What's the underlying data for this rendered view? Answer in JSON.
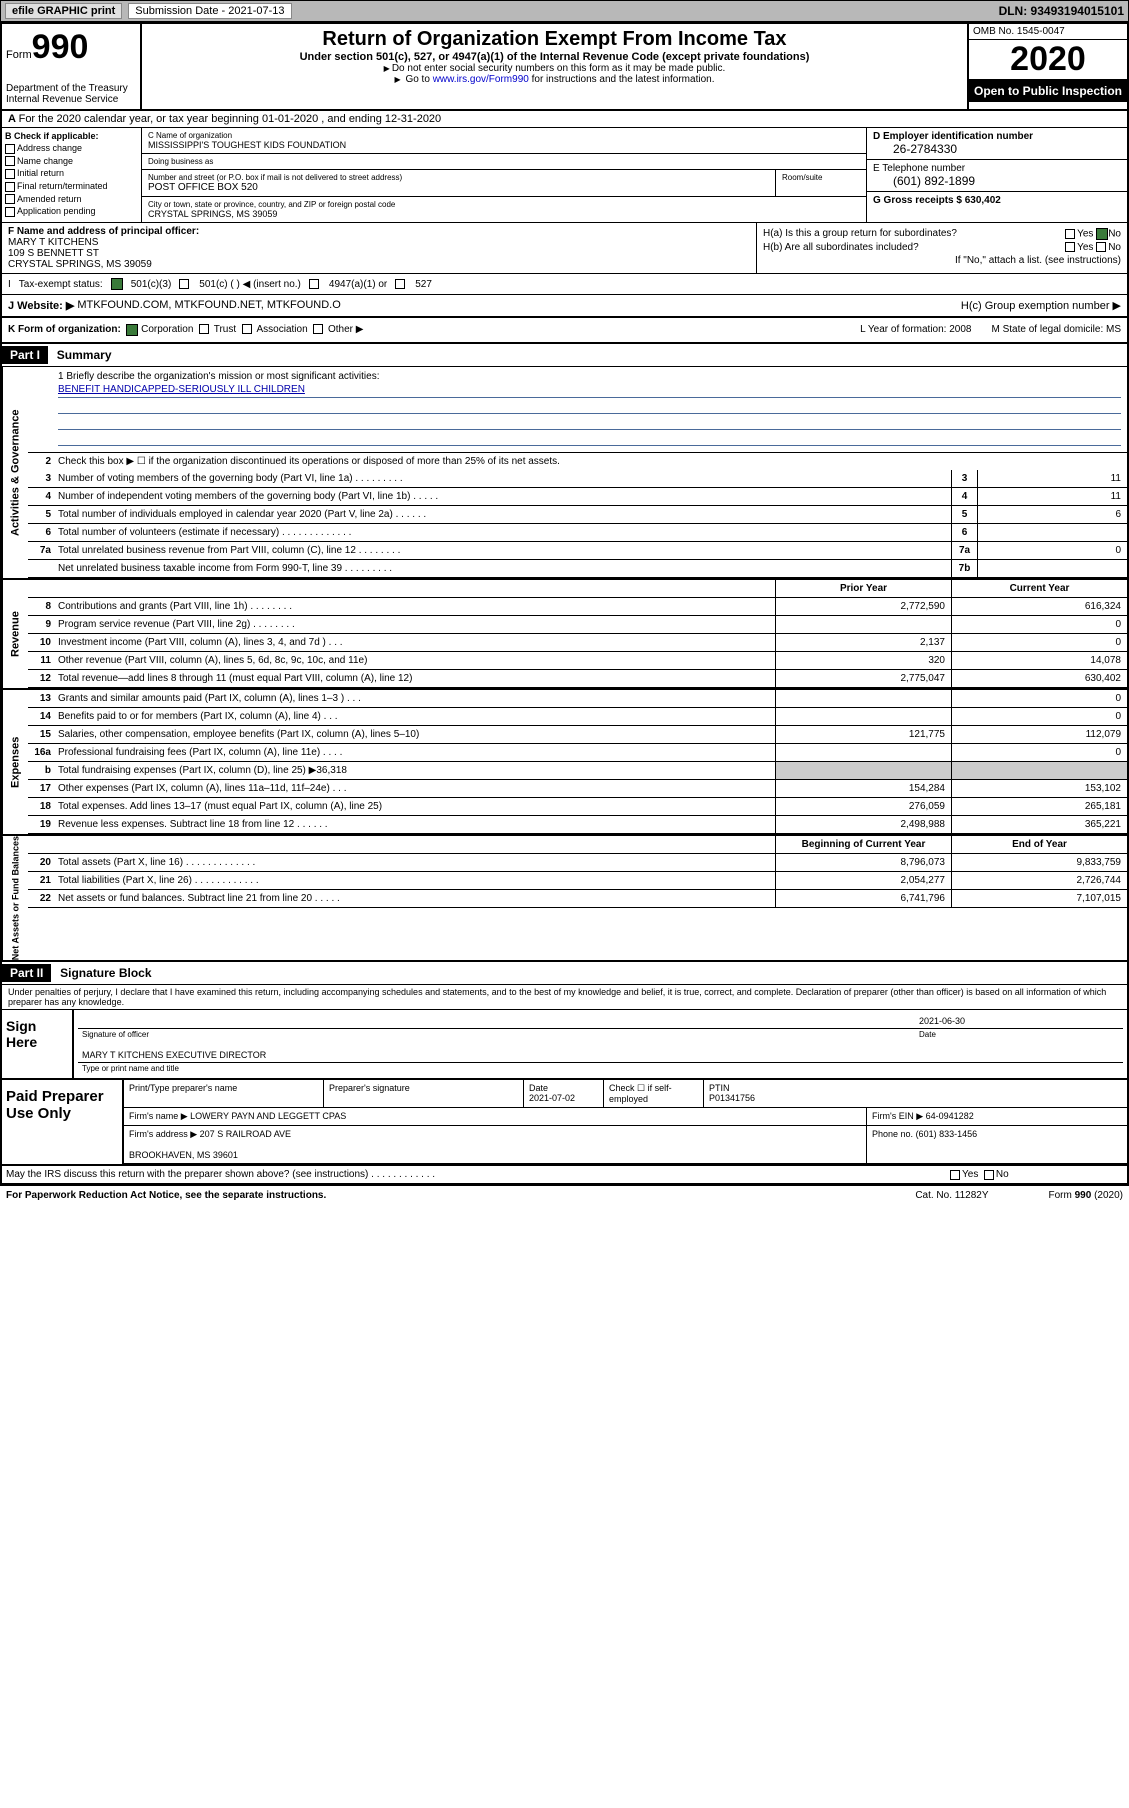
{
  "topbar": {
    "efile": "efile GRAPHIC print",
    "submission_label": "Submission Date - 2021-07-13",
    "dln": "DLN: 93493194015101"
  },
  "header": {
    "form_label": "Form",
    "form_number": "990",
    "title": "Return of Organization Exempt From Income Tax",
    "subtitle": "Under section 501(c), 527, or 4947(a)(1) of the Internal Revenue Code (except private foundations)",
    "note1": "Do not enter social security numbers on this form as it may be made public.",
    "note2_pre": "Go to ",
    "note2_link": "www.irs.gov/Form990",
    "note2_post": " for instructions and the latest information.",
    "dept": "Department of the Treasury\nInternal Revenue Service",
    "omb": "OMB No. 1545-0047",
    "year": "2020",
    "open": "Open to Public Inspection"
  },
  "row_a": "For the 2020 calendar year, or tax year beginning 01-01-2020    , and ending 12-31-2020",
  "col_b": {
    "label": "B Check if applicable:",
    "items": [
      "Address change",
      "Name change",
      "Initial return",
      "Final return/terminated",
      "Amended return",
      "Application pending"
    ]
  },
  "col_c": {
    "name_label": "C Name of organization",
    "name": "MISSISSIPPI'S TOUGHEST KIDS FOUNDATION",
    "dba_label": "Doing business as",
    "dba": "",
    "street_label": "Number and street (or P.O. box if mail is not delivered to street address)",
    "street": "POST OFFICE BOX 520",
    "room_label": "Room/suite",
    "city_label": "City or town, state or province, country, and ZIP or foreign postal code",
    "city": "CRYSTAL SPRINGS, MS  39059"
  },
  "col_d": {
    "ein_label": "D Employer identification number",
    "ein": "26-2784330",
    "phone_label": "E Telephone number",
    "phone": "(601) 892-1899",
    "gross_label": "G Gross receipts $ 630,402"
  },
  "col_f": {
    "label": "F  Name and address of principal officer:",
    "name": "MARY T KITCHENS",
    "street": "109 S BENNETT ST",
    "city": "CRYSTAL SPRINGS, MS  39059"
  },
  "col_h": {
    "ha": "H(a)  Is this a group return for subordinates?",
    "hb": "H(b)  Are all subordinates included?",
    "hb_note": "If \"No,\" attach a list. (see instructions)",
    "hc": "H(c)  Group exemption number ▶",
    "yes": "Yes",
    "no": "No"
  },
  "tax_status": {
    "label": "Tax-exempt status:",
    "opt1": "501(c)(3)",
    "opt2": "501(c) (  ) ◀ (insert no.)",
    "opt3": "4947(a)(1) or",
    "opt4": "527"
  },
  "website": {
    "label": "J   Website: ▶",
    "value": "MTKFOUND.COM, MTKFOUND.NET, MTKFOUND.O"
  },
  "k_row": {
    "label": "K Form of organization:",
    "corp": "Corporation",
    "trust": "Trust",
    "assoc": "Association",
    "other": "Other ▶",
    "l_label": "L Year of formation: 2008",
    "m_label": "M State of legal domicile: MS"
  },
  "part1": {
    "hdr": "Part I",
    "title": "Summary",
    "mission_label": "1   Briefly describe the organization's mission or most significant activities:",
    "mission": "BENEFIT HANDICAPPED-SERIOUSLY ILL CHILDREN",
    "line2": "Check this box ▶ ☐  if the organization discontinued its operations or disposed of more than 25% of its net assets.",
    "side_gov": "Activities & Governance",
    "side_rev": "Revenue",
    "side_exp": "Expenses",
    "side_net": "Net Assets or Fund Balances"
  },
  "gov_lines": [
    {
      "n": "3",
      "t": "Number of voting members of the governing body (Part VI, line 1a)   .   .   .   .   .   .   .   .   .",
      "b": "3",
      "v": "11"
    },
    {
      "n": "4",
      "t": "Number of independent voting members of the governing body (Part VI, line 1b)   .   .   .   .   .",
      "b": "4",
      "v": "11"
    },
    {
      "n": "5",
      "t": "Total number of individuals employed in calendar year 2020 (Part V, line 2a)   .   .   .   .   .   .",
      "b": "5",
      "v": "6"
    },
    {
      "n": "6",
      "t": "Total number of volunteers (estimate if necessary)   .   .   .   .   .   .   .   .   .   .   .   .   .",
      "b": "6",
      "v": ""
    },
    {
      "n": "7a",
      "t": "Total unrelated business revenue from Part VIII, column (C), line 12   .   .   .   .   .   .   .   .",
      "b": "7a",
      "v": "0"
    },
    {
      "n": "",
      "t": "Net unrelated business taxable income from Form 990-T, line 39   .   .   .   .   .   .   .   .   .",
      "b": "7b",
      "v": ""
    }
  ],
  "col_hdrs": {
    "prior": "Prior Year",
    "current": "Current Year"
  },
  "rev_lines": [
    {
      "n": "8",
      "t": "Contributions and grants (Part VIII, line 1h)   .   .   .   .   .   .   .   .",
      "p": "2,772,590",
      "c": "616,324"
    },
    {
      "n": "9",
      "t": "Program service revenue (Part VIII, line 2g)   .   .   .   .   .   .   .   .",
      "p": "",
      "c": "0"
    },
    {
      "n": "10",
      "t": "Investment income (Part VIII, column (A), lines 3, 4, and 7d )   .   .   .",
      "p": "2,137",
      "c": "0"
    },
    {
      "n": "11",
      "t": "Other revenue (Part VIII, column (A), lines 5, 6d, 8c, 9c, 10c, and 11e)",
      "p": "320",
      "c": "14,078"
    },
    {
      "n": "12",
      "t": "Total revenue—add lines 8 through 11 (must equal Part VIII, column (A), line 12)",
      "p": "2,775,047",
      "c": "630,402"
    }
  ],
  "exp_lines": [
    {
      "n": "13",
      "t": "Grants and similar amounts paid (Part IX, column (A), lines 1–3 )   .   .   .",
      "p": "",
      "c": "0"
    },
    {
      "n": "14",
      "t": "Benefits paid to or for members (Part IX, column (A), line 4)   .   .   .",
      "p": "",
      "c": "0"
    },
    {
      "n": "15",
      "t": "Salaries, other compensation, employee benefits (Part IX, column (A), lines 5–10)",
      "p": "121,775",
      "c": "112,079"
    },
    {
      "n": "16a",
      "t": "Professional fundraising fees (Part IX, column (A), line 11e)   .   .   .   .",
      "p": "",
      "c": "0"
    },
    {
      "n": "b",
      "t": "Total fundraising expenses (Part IX, column (D), line 25) ▶36,318",
      "p": "",
      "c": ""
    },
    {
      "n": "17",
      "t": "Other expenses (Part IX, column (A), lines 11a–11d, 11f–24e)   .   .   .",
      "p": "154,284",
      "c": "153,102"
    },
    {
      "n": "18",
      "t": "Total expenses. Add lines 13–17 (must equal Part IX, column (A), line 25)",
      "p": "276,059",
      "c": "265,181"
    },
    {
      "n": "19",
      "t": "Revenue less expenses. Subtract line 18 from line 12   .   .   .   .   .   .",
      "p": "2,498,988",
      "c": "365,221"
    }
  ],
  "net_hdrs": {
    "begin": "Beginning of Current Year",
    "end": "End of Year"
  },
  "net_lines": [
    {
      "n": "20",
      "t": "Total assets (Part X, line 16)   .   .   .   .   .   .   .   .   .   .   .   .   .",
      "p": "8,796,073",
      "c": "9,833,759"
    },
    {
      "n": "21",
      "t": "Total liabilities (Part X, line 26)   .   .   .   .   .   .   .   .   .   .   .   .",
      "p": "2,054,277",
      "c": "2,726,744"
    },
    {
      "n": "22",
      "t": "Net assets or fund balances. Subtract line 21 from line 20   .   .   .   .   .",
      "p": "6,741,796",
      "c": "7,107,015"
    }
  ],
  "part2": {
    "hdr": "Part II",
    "title": "Signature Block"
  },
  "perjury": "Under penalties of perjury, I declare that I have examined this return, including accompanying schedules and statements, and to the best of my knowledge and belief, it is true, correct, and complete. Declaration of preparer (other than officer) is based on all information of which preparer has any knowledge.",
  "sign": {
    "label": "Sign Here",
    "sig_officer": "Signature of officer",
    "date": "2021-06-30",
    "date_label": "Date",
    "name": "MARY T KITCHENS  EXECUTIVE DIRECTOR",
    "name_label": "Type or print name and title"
  },
  "prep": {
    "label": "Paid Preparer Use Only",
    "h1": "Print/Type preparer's name",
    "h2": "Preparer's signature",
    "h3": "Date",
    "date": "2021-07-02",
    "h4": "Check ☐ if self-employed",
    "h5": "PTIN",
    "ptin": "P01341756",
    "firm_name_label": "Firm's name    ▶",
    "firm_name": "LOWERY PAYN AND LEGGETT CPAS",
    "firm_ein_label": "Firm's EIN ▶",
    "firm_ein": "64-0941282",
    "firm_addr_label": "Firm's address ▶",
    "firm_addr": "207 S RAILROAD AVE",
    "firm_city": "BROOKHAVEN, MS  39601",
    "phone_label": "Phone no.",
    "phone": "(601) 833-1456"
  },
  "discuss": "May the IRS discuss this return with the preparer shown above? (see instructions)   .   .   .   .   .   .   .   .   .   .   .   .",
  "footer": {
    "left": "For Paperwork Reduction Act Notice, see the separate instructions.",
    "mid": "Cat. No. 11282Y",
    "right": "Form 990 (2020)"
  }
}
